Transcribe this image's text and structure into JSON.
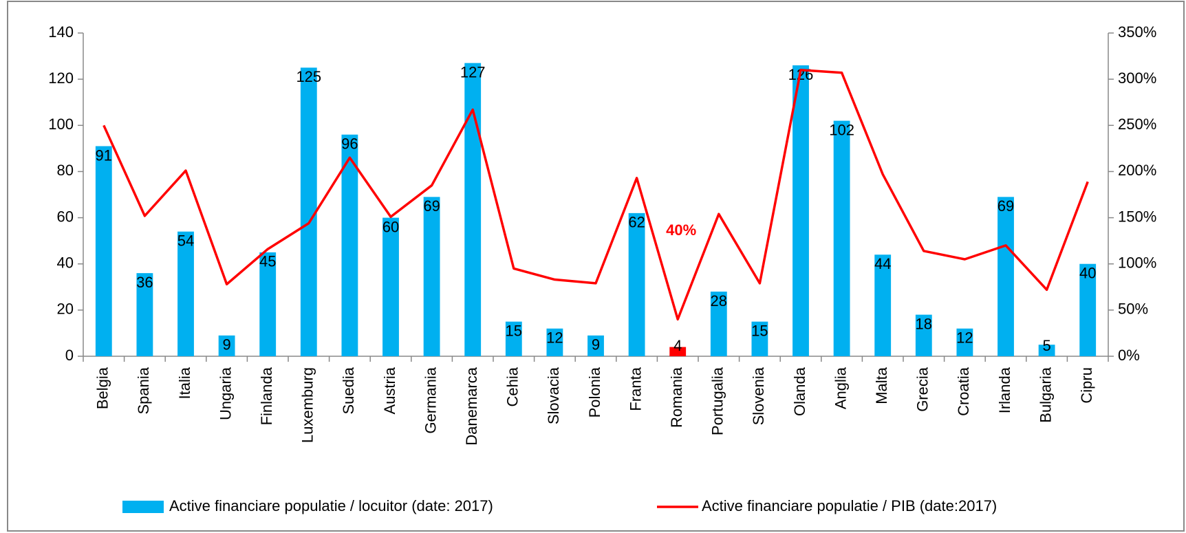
{
  "chart_data": {
    "type": "bar_line",
    "categories": [
      "Belgia",
      "Spania",
      "Italia",
      "Ungaria",
      "Finlanda",
      "Luxemburg",
      "Suedia",
      "Austria",
      "Germania",
      "Danemarca",
      "Cehia",
      "Slovacia",
      "Polonia",
      "Franta",
      "Romania",
      "Portugalia",
      "Slovenia",
      "Olanda",
      "Anglia",
      "Malta",
      "Grecia",
      "Croatia",
      "Irlanda",
      "Bulgaria",
      "Cipru"
    ],
    "series": [
      {
        "name": "Active financiare populatie  / locuitor (date: 2017)",
        "color": "#00b0f0",
        "colors": [
          "#00b0f0",
          "#00b0f0",
          "#00b0f0",
          "#00b0f0",
          "#00b0f0",
          "#00b0f0",
          "#00b0f0",
          "#00b0f0",
          "#00b0f0",
          "#00b0f0",
          "#00b0f0",
          "#00b0f0",
          "#00b0f0",
          "#00b0f0",
          "#ff0000",
          "#00b0f0",
          "#00b0f0",
          "#00b0f0",
          "#00b0f0",
          "#00b0f0",
          "#00b0f0",
          "#00b0f0",
          "#00b0f0",
          "#00b0f0",
          "#00b0f0"
        ],
        "values": [
          91,
          36,
          54,
          9,
          45,
          125,
          96,
          60,
          69,
          127,
          15,
          12,
          9,
          62,
          4,
          28,
          15,
          126,
          102,
          44,
          18,
          12,
          69,
          5,
          40
        ]
      },
      {
        "name": "Active financiare populatie  / PIB (date:2017)",
        "color": "#ff0000",
        "axis": "y2",
        "values": [
          250,
          152,
          201,
          78,
          116,
          144,
          215,
          151,
          185,
          267,
          95,
          83,
          79,
          193,
          40,
          154,
          79,
          310,
          307,
          197,
          114,
          105,
          120,
          72,
          189
        ],
        "value_labels": [
          null,
          null,
          null,
          null,
          null,
          null,
          null,
          null,
          null,
          null,
          null,
          null,
          null,
          null,
          "40%",
          null,
          null,
          null,
          null,
          null,
          null,
          null,
          null,
          null,
          null
        ]
      }
    ],
    "ylim": [
      0,
      140
    ],
    "yticks": [
      0,
      20,
      40,
      60,
      80,
      100,
      120,
      140
    ],
    "y2lim": [
      0,
      350
    ],
    "y2ticks": [
      {
        "value": 0,
        "label": "0%"
      },
      {
        "value": 50,
        "label": "50%"
      },
      {
        "value": 100,
        "label": "100%"
      },
      {
        "value": 150,
        "label": "150%"
      },
      {
        "value": 200,
        "label": "200%"
      },
      {
        "value": 250,
        "label": "250%"
      },
      {
        "value": 300,
        "label": "300%"
      },
      {
        "value": 350,
        "label": "350%"
      }
    ],
    "legend": "bottom"
  }
}
